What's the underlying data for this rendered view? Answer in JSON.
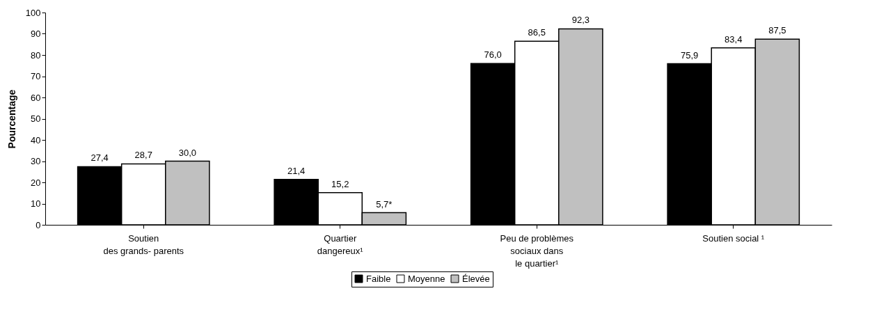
{
  "chart_data": {
    "type": "bar",
    "ylabel": "Pourcentage",
    "categories": [
      "Soutien\ndes grands- parents",
      "Quartier\ndangereux¹",
      "Peu de problèmes\nsociaux dans\nle quartier¹",
      "Soutien social ¹"
    ],
    "series": [
      {
        "name": "Faible",
        "color": "#000000",
        "values": [
          27.4,
          21.4,
          76.0,
          75.9
        ],
        "value_labels": [
          "27,4",
          "21,4",
          "76,0",
          "75,9"
        ]
      },
      {
        "name": "Moyenne",
        "color": "#ffffff",
        "values": [
          28.7,
          15.2,
          86.5,
          83.4
        ],
        "value_labels": [
          "28,7",
          "15,2",
          "86,5",
          "83,4"
        ]
      },
      {
        "name": "Élevée",
        "color": "#c0c0c0",
        "values": [
          30.0,
          5.7,
          92.3,
          87.5
        ],
        "value_labels": [
          "30,0",
          "5,7*",
          "92,3",
          "87,5"
        ]
      }
    ],
    "ylim": [
      0,
      100
    ],
    "yticks": [
      0,
      10,
      20,
      30,
      40,
      50,
      60,
      70,
      80,
      90,
      100
    ],
    "grid": false,
    "legend": "bottom"
  }
}
